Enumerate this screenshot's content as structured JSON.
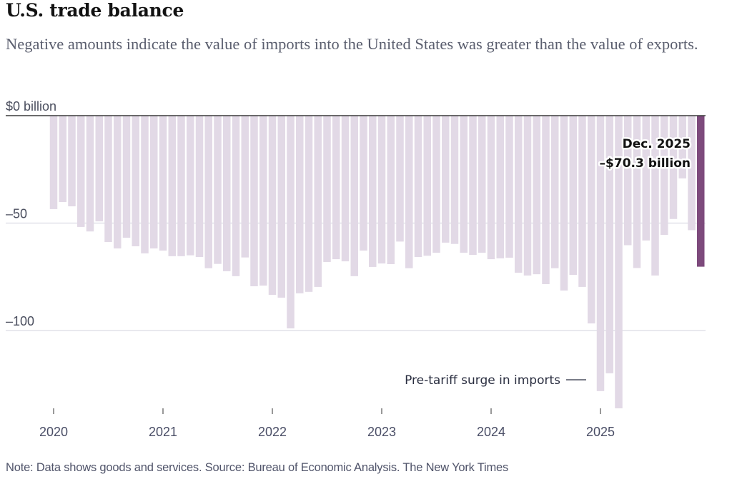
{
  "header": {
    "title": "U.S. trade balance",
    "subtitle": "Negative amounts indicate the value of imports into the United States was greater than the value of exports."
  },
  "footer": {
    "note": "Note: Data shows goods and services.  Source: Bureau of Economic Analysis.  The New York Times"
  },
  "colors": {
    "bar": "#e2d9e6",
    "highlight_bar": "#7d4a7c",
    "zero_line": "#3a3a3a",
    "grid": "#dcdce4"
  },
  "chart_data": {
    "type": "bar",
    "title": "U.S. trade balance",
    "subtitle": "Negative amounts indicate the value of imports into the United States was greater than the value of exports.",
    "xlabel": "",
    "ylabel": "$ billion",
    "ylim": [
      -140,
      0
    ],
    "y_ticks": [
      {
        "value": 0,
        "label": "$0 billion"
      },
      {
        "value": -50,
        "label": "–50"
      },
      {
        "value": -100,
        "label": "–100"
      }
    ],
    "x_ticks": [
      "2020",
      "2021",
      "2022",
      "2023",
      "2024",
      "2025"
    ],
    "start": "2020-01",
    "frequency": "monthly",
    "categories": [
      "Jan 2020",
      "Feb 2020",
      "Mar 2020",
      "Apr 2020",
      "May 2020",
      "Jun 2020",
      "Jul 2020",
      "Aug 2020",
      "Sep 2020",
      "Oct 2020",
      "Nov 2020",
      "Dec 2020",
      "Jan 2021",
      "Feb 2021",
      "Mar 2021",
      "Apr 2021",
      "May 2021",
      "Jun 2021",
      "Jul 2021",
      "Aug 2021",
      "Sep 2021",
      "Oct 2021",
      "Nov 2021",
      "Dec 2021",
      "Jan 2022",
      "Feb 2022",
      "Mar 2022",
      "Apr 2022",
      "May 2022",
      "Jun 2022",
      "Jul 2022",
      "Aug 2022",
      "Sep 2022",
      "Oct 2022",
      "Nov 2022",
      "Dec 2022",
      "Jan 2023",
      "Feb 2023",
      "Mar 2023",
      "Apr 2023",
      "May 2023",
      "Jun 2023",
      "Jul 2023",
      "Aug 2023",
      "Sep 2023",
      "Oct 2023",
      "Nov 2023",
      "Dec 2023",
      "Jan 2024",
      "Feb 2024",
      "Mar 2024",
      "Apr 2024",
      "May 2024",
      "Jun 2024",
      "Jul 2024",
      "Aug 2024",
      "Sep 2024",
      "Oct 2024",
      "Nov 2024",
      "Dec 2024",
      "Jan 2025",
      "Feb 2025",
      "Mar 2025",
      "Apr 2025",
      "May 2025",
      "Jun 2025",
      "Jul 2025",
      "Aug 2025",
      "Sep 2025",
      "Oct 2025",
      "Nov 2025",
      "Dec 2025"
    ],
    "values": [
      -43.5,
      -40.2,
      -42.2,
      -51.8,
      -53.9,
      -49.2,
      -58.8,
      -61.8,
      -56.8,
      -60.8,
      -64.1,
      -61.8,
      -62.8,
      -65.4,
      -65.4,
      -65.0,
      -65.8,
      -71.0,
      -69.0,
      -72.4,
      -74.7,
      -66.0,
      -79.4,
      -79.1,
      -83.4,
      -84.7,
      -99.0,
      -82.7,
      -82.0,
      -79.7,
      -68.1,
      -66.8,
      -67.8,
      -74.7,
      -62.8,
      -70.4,
      -68.8,
      -69.1,
      -58.6,
      -71.0,
      -65.8,
      -65.2,
      -63.8,
      -59.1,
      -59.7,
      -63.8,
      -64.8,
      -63.8,
      -66.8,
      -66.4,
      -66.1,
      -73.1,
      -74.4,
      -73.8,
      -78.4,
      -71.0,
      -81.4,
      -74.1,
      -79.7,
      -96.7,
      -128.2,
      -119.9,
      -136.2,
      -60.3,
      -70.9,
      -58.1,
      -74.4,
      -55.5,
      -48.1,
      -29.2,
      -53.3,
      -70.3
    ],
    "highlight_index": 71,
    "annotations": [
      {
        "target": "Dec 2025",
        "lines": [
          "Dec. 2025",
          "–$70.3 billion"
        ]
      },
      {
        "target": "Jan–Mar 2025",
        "text": "Pre-tariff surge in imports"
      }
    ],
    "grid": true,
    "legend": "none"
  }
}
